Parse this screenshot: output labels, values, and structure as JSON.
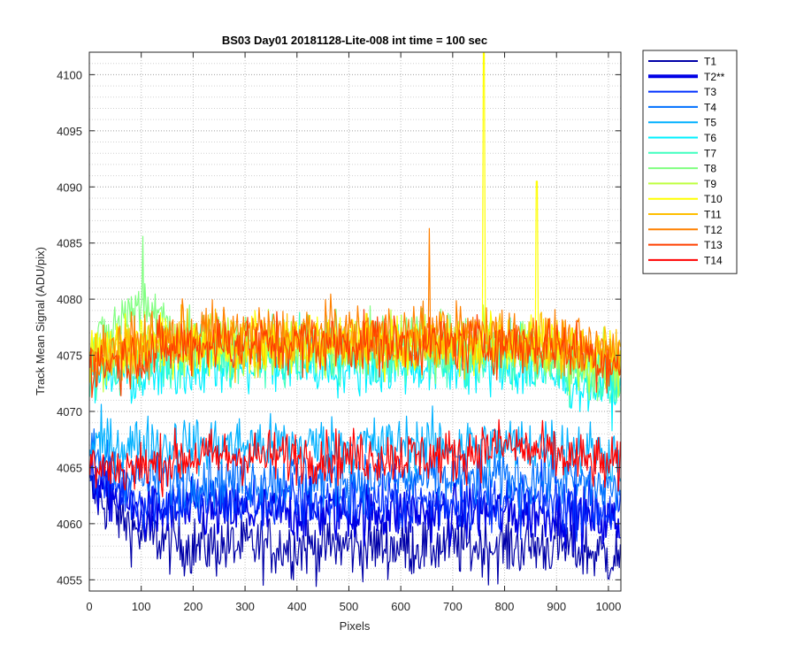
{
  "chart_data": {
    "type": "line",
    "title": "BS03 Day01 20181128-Lite-008 int time = 100 sec",
    "xlabel": "Pixels",
    "ylabel": "Track Mean Signal (ADU/pix)",
    "xlim": [
      0,
      1024
    ],
    "ylim": [
      4054,
      4102
    ],
    "xticks": [
      0,
      100,
      200,
      300,
      400,
      500,
      600,
      700,
      800,
      900,
      1000
    ],
    "yticks": [
      4055,
      4060,
      4065,
      4070,
      4075,
      4080,
      4085,
      4090,
      4095,
      4100
    ],
    "grid": true,
    "minor_grid_y": true,
    "legend_position": "outside-right-top",
    "series": [
      {
        "name": "T1",
        "color": "#0000a8",
        "x": [
          0,
          100,
          200,
          300,
          400,
          500,
          600,
          700,
          800,
          900,
          1024
        ],
        "values": [
          4063,
          4059,
          4058,
          4058,
          4058,
          4058,
          4058,
          4058,
          4058,
          4058,
          4057
        ],
        "noise": 1.4
      },
      {
        "name": "T2**",
        "color": "#0000e6",
        "bold": true,
        "x": [
          0,
          100,
          200,
          300,
          400,
          500,
          600,
          700,
          800,
          900,
          1024
        ],
        "values": [
          4064,
          4061,
          4061,
          4061,
          4061,
          4061,
          4061,
          4061,
          4061,
          4061,
          4060
        ],
        "noise": 1.3
      },
      {
        "name": "T3",
        "color": "#0030ff",
        "x": [
          0,
          100,
          200,
          300,
          400,
          500,
          600,
          700,
          800,
          900,
          1024
        ],
        "values": [
          4065,
          4062,
          4062,
          4062,
          4062,
          4062,
          4062,
          4062,
          4062,
          4062,
          4061
        ],
        "noise": 1.3
      },
      {
        "name": "T4",
        "color": "#0070ff",
        "x": [
          0,
          100,
          200,
          300,
          400,
          500,
          600,
          700,
          800,
          900,
          1024
        ],
        "values": [
          4066,
          4064,
          4064,
          4064,
          4064,
          4064,
          4064,
          4064,
          4064,
          4064,
          4063
        ],
        "noise": 1.3
      },
      {
        "name": "T5",
        "color": "#00b0ff",
        "x": [
          0,
          100,
          200,
          300,
          400,
          500,
          600,
          700,
          800,
          900,
          1024
        ],
        "values": [
          4067,
          4067,
          4067,
          4067,
          4067,
          4067,
          4067,
          4067,
          4067,
          4067,
          4066
        ],
        "noise": 1.3
      },
      {
        "name": "T6",
        "color": "#00f0ff",
        "x": [
          0,
          100,
          200,
          300,
          400,
          500,
          600,
          700,
          800,
          900,
          1024
        ],
        "values": [
          4073,
          4073,
          4074,
          4074,
          4074,
          4074,
          4074,
          4074,
          4074,
          4073,
          4072
        ],
        "noise": 1.3
      },
      {
        "name": "T7",
        "color": "#40ffbf",
        "x": [
          0,
          100,
          200,
          300,
          400,
          500,
          600,
          700,
          800,
          900,
          1024
        ],
        "values": [
          4074,
          4074,
          4075,
          4075,
          4075,
          4075,
          4075,
          4075,
          4075,
          4074,
          4073
        ],
        "noise": 1.3
      },
      {
        "name": "T8",
        "color": "#80ff80",
        "x": [
          0,
          100,
          200,
          300,
          400,
          500,
          600,
          700,
          800,
          900,
          1024
        ],
        "values": [
          4075,
          4080,
          4076,
          4076,
          4076,
          4076,
          4076,
          4076,
          4076,
          4075,
          4073
        ],
        "noise": 1.4
      },
      {
        "name": "T9",
        "color": "#bfff40",
        "x": [
          0,
          100,
          200,
          300,
          400,
          500,
          600,
          700,
          800,
          900,
          1024
        ],
        "values": [
          4075,
          4076,
          4076,
          4076,
          4076,
          4076,
          4076,
          4076,
          4076,
          4075,
          4074
        ],
        "noise": 1.3
      },
      {
        "name": "T10",
        "color": "#ffff00",
        "x": [
          0,
          100,
          200,
          300,
          400,
          500,
          600,
          700,
          800,
          900,
          1024
        ],
        "values": [
          4075,
          4076,
          4076,
          4076,
          4076,
          4076,
          4076,
          4076,
          4076,
          4076,
          4075
        ],
        "noise": 1.3
      },
      {
        "name": "T11",
        "color": "#ffbf00",
        "x": [
          0,
          100,
          200,
          300,
          400,
          500,
          600,
          700,
          800,
          900,
          1024
        ],
        "values": [
          4075,
          4076,
          4076,
          4076,
          4076,
          4076,
          4076,
          4076,
          4076,
          4076,
          4075
        ],
        "noise": 1.3
      },
      {
        "name": "T12",
        "color": "#ff8000",
        "x": [
          0,
          100,
          200,
          300,
          400,
          500,
          600,
          700,
          800,
          900,
          1024
        ],
        "values": [
          4075,
          4076,
          4077,
          4077,
          4077,
          4077,
          4077,
          4077,
          4077,
          4076,
          4075
        ],
        "noise": 1.3
      },
      {
        "name": "T13",
        "color": "#ff4000",
        "x": [
          0,
          100,
          200,
          300,
          400,
          500,
          600,
          700,
          800,
          900,
          1024
        ],
        "values": [
          4074,
          4075,
          4076,
          4076,
          4076,
          4076,
          4076,
          4076,
          4076,
          4076,
          4074
        ],
        "noise": 1.3
      },
      {
        "name": "T14",
        "color": "#ff0000",
        "x": [
          0,
          100,
          200,
          300,
          400,
          500,
          600,
          700,
          800,
          900,
          1024
        ],
        "values": [
          4065,
          4065,
          4066,
          4066,
          4066,
          4066,
          4066,
          4066,
          4067,
          4066,
          4065
        ],
        "noise": 1.2
      }
    ],
    "spikes": [
      {
        "series": "T10",
        "x": 760,
        "value": 4102
      },
      {
        "series": "T10",
        "x": 862,
        "value": 4090.5
      },
      {
        "series": "T12",
        "x": 655,
        "value": 4086.3
      },
      {
        "series": "T8",
        "x": 103,
        "value": 4085.6
      }
    ]
  }
}
